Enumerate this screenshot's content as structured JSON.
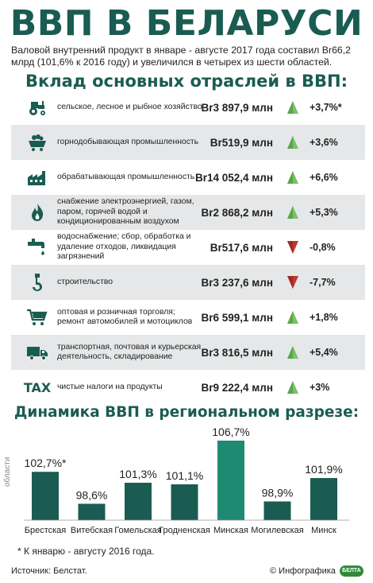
{
  "title": "ВВП В БЕЛАРУСИ",
  "intro": "Валовой внутренний продукт в январе - августе 2017 года составил Br66,2 млрд (101,6% к 2016 году) и увеличился в четырех из шести областей.",
  "section1_title": "Вклад основных отраслей в ВВП:",
  "colors": {
    "accent": "#1a5c52",
    "up": "#7bbf6a",
    "down": "#c0392b",
    "shade": "#e6e7e8"
  },
  "sectors": [
    {
      "icon": "tractor-icon",
      "label": "сельское, лесное и рыбное хозяйство",
      "value": "Br3 897,9 млн",
      "trend": "up",
      "change": "+3,7%*"
    },
    {
      "icon": "mining-cart-icon",
      "label": "горнодобывающая промышленность",
      "value": "Br519,9 млн",
      "trend": "up",
      "change": "+3,6%"
    },
    {
      "icon": "factory-icon",
      "label": "обрабатывающая промышленность",
      "value": "Br14 052,4 млн",
      "trend": "up",
      "change": "+6,6%"
    },
    {
      "icon": "flame-icon",
      "label": "снабжение электроэнергией, газом, паром, горячей водой и кондиционированным воздухом",
      "value": "Br2 868,2 млн",
      "trend": "up",
      "change": "+5,3%"
    },
    {
      "icon": "water-tap-icon",
      "label": "водоснабжение; сбор, обработка и удаление отходов, ликвидация загрязнений",
      "value": "Br517,6 млн",
      "trend": "down",
      "change": "-0,8%"
    },
    {
      "icon": "crane-hook-icon",
      "label": "строительство",
      "value": "Br3 237,6 млн",
      "trend": "down",
      "change": "-7,7%"
    },
    {
      "icon": "shopping-cart-icon",
      "label": "оптовая и розничная торговля; ремонт автомобилей и мотоциклов",
      "value": "Br6 599,1 млн",
      "trend": "up",
      "change": "+1,8%"
    },
    {
      "icon": "truck-icon",
      "label": "транспортная, почтовая и курьерская деятельность, складирование",
      "value": "Br3 816,5 млн",
      "trend": "up",
      "change": "+5,4%"
    },
    {
      "icon": "tax-icon",
      "icon_text": "TAX",
      "label": "чистые налоги на продукты",
      "value": "Br9 222,4 млн",
      "trend": "up",
      "change": "+3%"
    }
  ],
  "section2_title": "Динамика ВВП в региональном разрезе:",
  "chart_data": {
    "type": "bar",
    "categories": [
      "Брестская",
      "Витебская",
      "Гомельская",
      "Гродненская",
      "Минская",
      "Могилевская",
      "Минск"
    ],
    "values": [
      102.7,
      98.6,
      101.3,
      101.1,
      106.7,
      98.9,
      101.9
    ],
    "value_labels": [
      "102,7%*",
      "98,6%",
      "101,3%",
      "101,1%",
      "106,7%",
      "98,9%",
      "101,9%"
    ],
    "highlight_index": 4,
    "ylabel": "области",
    "bar_color": "#1a5c52",
    "highlight_color": "#1e8a72"
  },
  "footnote": "* К январю - августу 2016 года.",
  "source": "Источник: Белстат.",
  "credit": "© Инфографика",
  "logo_text": "БЕЛТА"
}
